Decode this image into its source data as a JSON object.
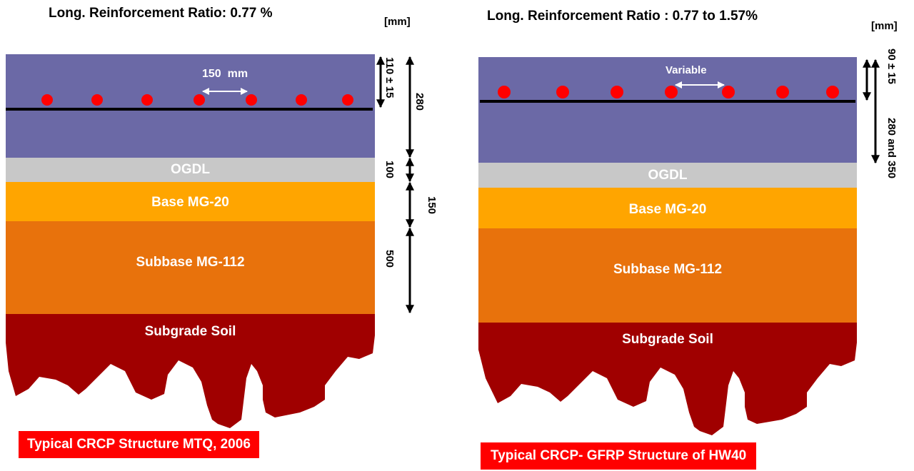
{
  "left": {
    "title": "Long. Reinforcement Ratio: 0.77 %",
    "unit": "[mm]",
    "spacing_label": "150  mm",
    "layers": {
      "ogdl": "OGDL",
      "base": "Base MG-20",
      "subbase": "Subbase MG-112",
      "subgrade": "Subgrade Soil"
    },
    "dimensions": {
      "cover": "110 ± 15",
      "slab": "280",
      "ogdl": "100",
      "base": "150",
      "subbase": "500"
    },
    "caption": "Typical CRCP Structure MTQ, 2006"
  },
  "right": {
    "title": "Long. Reinforcement Ratio : 0.77 to 1.57%",
    "unit": "[mm]",
    "spacing_label": "Variable",
    "layers": {
      "ogdl": "OGDL",
      "base": "Base MG-20",
      "subbase": "Subbase MG-112",
      "subgrade": "Subgrade Soil"
    },
    "dimensions": {
      "cover": "90 ± 15",
      "slab": "280 and 350"
    },
    "caption": "Typical CRCP- GFRP Structure of HW40"
  },
  "colors": {
    "slab": "#6b69a6",
    "ogdl": "#c8c8c8",
    "base": "#ffa500",
    "subbase": "#e8720c",
    "subgrade": "#a00000",
    "rebar": "#ff0000",
    "caption_bg": "#ff0000"
  }
}
